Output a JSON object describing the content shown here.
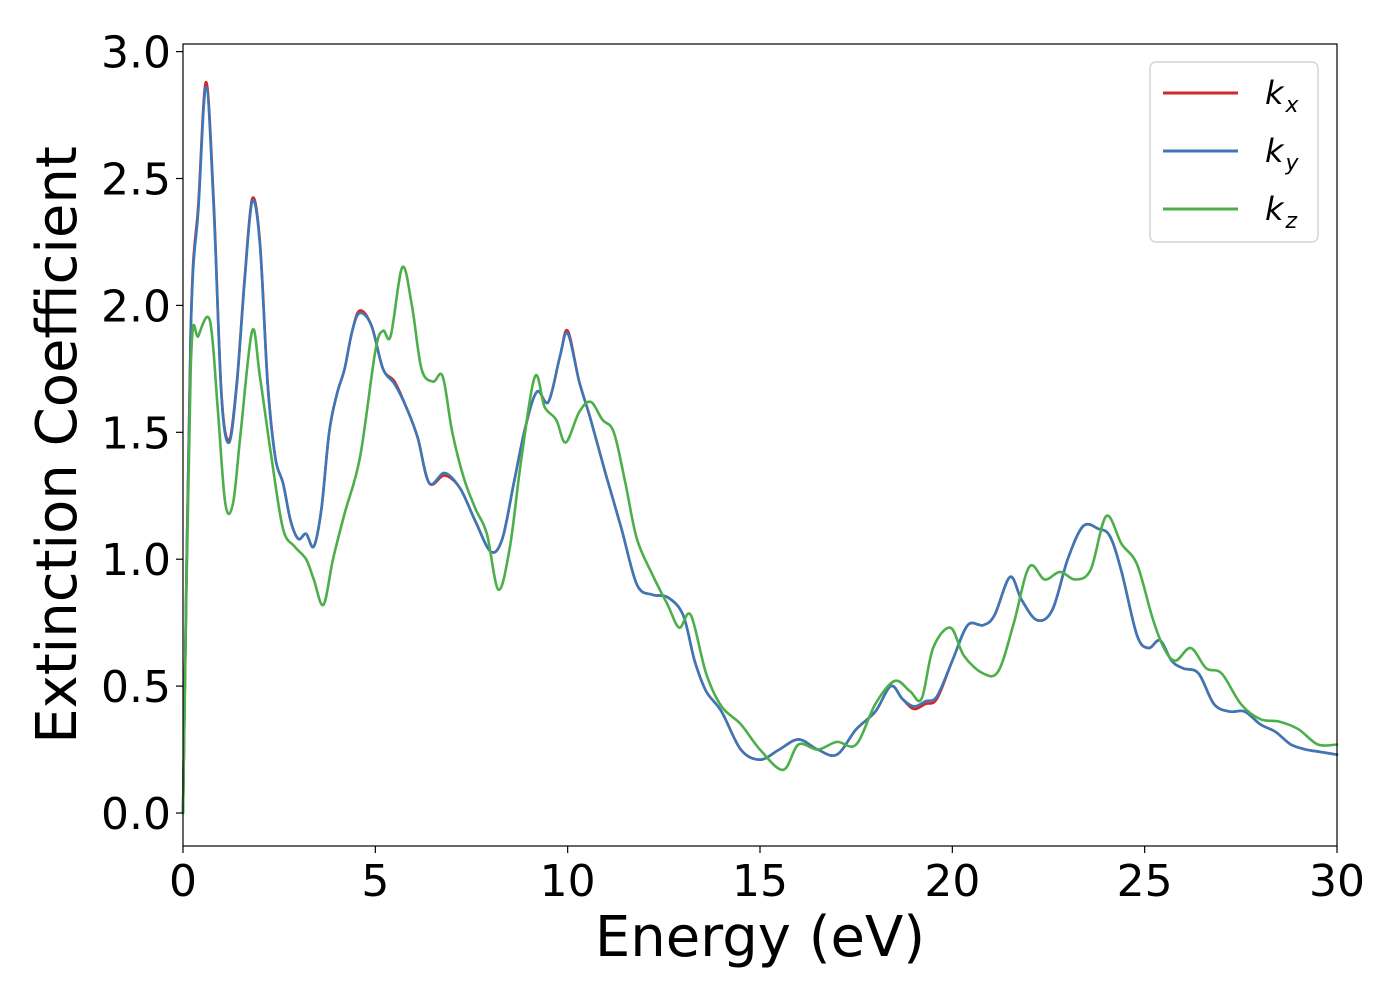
{
  "chart_data": {
    "type": "line",
    "xlabel": "Energy (eV)",
    "ylabel": "Extinction Coefficient",
    "xlim": [
      0,
      30
    ],
    "ylim": [
      -0.13,
      3.03
    ],
    "xticks": [
      0,
      5,
      10,
      15,
      20,
      25,
      30
    ],
    "yticks": [
      0.0,
      0.5,
      1.0,
      1.5,
      2.0,
      2.5,
      3.0
    ],
    "xtick_labels": [
      "0",
      "5",
      "10",
      "15",
      "20",
      "25",
      "30"
    ],
    "ytick_labels": [
      "0.0",
      "0.5",
      "1.0",
      "1.5",
      "2.0",
      "2.5",
      "3.0"
    ],
    "grid": false,
    "legend_position": "top-right",
    "series": [
      {
        "name": "k_x",
        "label_base": "k",
        "label_sub": "x",
        "color": "#d62728",
        "x": [
          0,
          0.2,
          0.4,
          0.6,
          0.8,
          1.0,
          1.2,
          1.4,
          1.6,
          1.8,
          2.0,
          2.2,
          2.4,
          2.6,
          2.8,
          3.0,
          3.2,
          3.4,
          3.6,
          3.8,
          4.0,
          4.2,
          4.4,
          4.6,
          4.9,
          5.2,
          5.5,
          5.8,
          6.1,
          6.4,
          6.8,
          7.2,
          7.6,
          8.0,
          8.3,
          8.6,
          8.9,
          9.2,
          9.5,
          9.8,
          10.0,
          10.3,
          10.6,
          11.0,
          11.4,
          11.8,
          12.2,
          12.6,
          13.0,
          13.3,
          13.6,
          14.0,
          14.5,
          15.0,
          15.5,
          16.0,
          16.5,
          17.0,
          17.5,
          18.0,
          18.4,
          18.7,
          19.0,
          19.3,
          19.6,
          20.0,
          20.4,
          20.8,
          21.1,
          21.5,
          21.8,
          22.2,
          22.6,
          23.0,
          23.4,
          23.8,
          24.1,
          24.4,
          24.8,
          25.1,
          25.4,
          25.7,
          26.0,
          26.4,
          26.8,
          27.2,
          27.6,
          28.0,
          28.4,
          28.8,
          29.2,
          29.6,
          30.0
        ],
        "y": [
          0.0,
          1.9,
          2.4,
          2.88,
          2.4,
          1.65,
          1.47,
          1.7,
          2.1,
          2.42,
          2.25,
          1.7,
          1.4,
          1.3,
          1.15,
          1.08,
          1.1,
          1.05,
          1.2,
          1.5,
          1.65,
          1.75,
          1.9,
          1.98,
          1.92,
          1.75,
          1.7,
          1.6,
          1.48,
          1.3,
          1.33,
          1.28,
          1.15,
          1.03,
          1.08,
          1.3,
          1.52,
          1.66,
          1.62,
          1.8,
          1.9,
          1.7,
          1.55,
          1.33,
          1.12,
          0.9,
          0.86,
          0.85,
          0.78,
          0.6,
          0.48,
          0.4,
          0.25,
          0.21,
          0.25,
          0.29,
          0.25,
          0.23,
          0.33,
          0.4,
          0.5,
          0.45,
          0.41,
          0.43,
          0.45,
          0.6,
          0.74,
          0.74,
          0.78,
          0.93,
          0.84,
          0.76,
          0.8,
          1.0,
          1.13,
          1.12,
          1.09,
          0.95,
          0.7,
          0.65,
          0.68,
          0.6,
          0.57,
          0.55,
          0.43,
          0.4,
          0.4,
          0.35,
          0.32,
          0.27,
          0.25,
          0.24,
          0.23
        ]
      },
      {
        "name": "k_y",
        "label_base": "k",
        "label_sub": "y",
        "color": "#3a78b8",
        "x": [
          0,
          0.2,
          0.4,
          0.6,
          0.8,
          1.0,
          1.2,
          1.4,
          1.6,
          1.8,
          2.0,
          2.2,
          2.4,
          2.6,
          2.8,
          3.0,
          3.2,
          3.4,
          3.6,
          3.8,
          4.0,
          4.2,
          4.4,
          4.6,
          4.9,
          5.2,
          5.5,
          5.8,
          6.1,
          6.4,
          6.8,
          7.2,
          7.6,
          8.0,
          8.3,
          8.6,
          8.9,
          9.2,
          9.5,
          9.8,
          10.0,
          10.3,
          10.6,
          11.0,
          11.4,
          11.8,
          12.2,
          12.6,
          13.0,
          13.3,
          13.6,
          14.0,
          14.5,
          15.0,
          15.5,
          16.0,
          16.5,
          17.0,
          17.5,
          18.0,
          18.4,
          18.7,
          19.0,
          19.3,
          19.6,
          20.0,
          20.4,
          20.8,
          21.1,
          21.5,
          21.8,
          22.2,
          22.6,
          23.0,
          23.4,
          23.8,
          24.1,
          24.4,
          24.8,
          25.1,
          25.4,
          25.7,
          26.0,
          26.4,
          26.8,
          27.2,
          27.6,
          28.0,
          28.4,
          28.8,
          29.2,
          29.6,
          30.0
        ],
        "y": [
          0.0,
          1.88,
          2.38,
          2.86,
          2.38,
          1.64,
          1.46,
          1.69,
          2.09,
          2.41,
          2.24,
          1.69,
          1.4,
          1.3,
          1.15,
          1.08,
          1.1,
          1.05,
          1.2,
          1.5,
          1.65,
          1.75,
          1.9,
          1.97,
          1.92,
          1.75,
          1.69,
          1.6,
          1.48,
          1.3,
          1.34,
          1.28,
          1.15,
          1.03,
          1.08,
          1.3,
          1.52,
          1.66,
          1.62,
          1.8,
          1.89,
          1.7,
          1.55,
          1.33,
          1.12,
          0.9,
          0.86,
          0.85,
          0.78,
          0.6,
          0.48,
          0.4,
          0.25,
          0.21,
          0.25,
          0.29,
          0.25,
          0.23,
          0.33,
          0.4,
          0.5,
          0.45,
          0.42,
          0.44,
          0.46,
          0.6,
          0.74,
          0.74,
          0.78,
          0.93,
          0.84,
          0.76,
          0.8,
          1.0,
          1.13,
          1.12,
          1.09,
          0.95,
          0.7,
          0.65,
          0.68,
          0.6,
          0.57,
          0.55,
          0.43,
          0.4,
          0.4,
          0.35,
          0.32,
          0.27,
          0.25,
          0.24,
          0.23
        ]
      },
      {
        "name": "k_z",
        "label_base": "k",
        "label_sub": "z",
        "color": "#4daf4a",
        "x": [
          0,
          0.2,
          0.4,
          0.7,
          0.9,
          1.1,
          1.3,
          1.5,
          1.8,
          2.0,
          2.3,
          2.6,
          2.9,
          3.2,
          3.4,
          3.65,
          3.9,
          4.2,
          4.6,
          5.0,
          5.2,
          5.4,
          5.7,
          5.95,
          6.2,
          6.5,
          6.75,
          7.0,
          7.3,
          7.6,
          7.9,
          8.2,
          8.5,
          8.8,
          9.15,
          9.4,
          9.7,
          9.95,
          10.3,
          10.6,
          10.9,
          11.2,
          11.5,
          11.8,
          12.2,
          12.6,
          12.9,
          13.2,
          13.6,
          14.0,
          14.5,
          15.0,
          15.6,
          16.0,
          16.5,
          17.0,
          17.5,
          18.0,
          18.5,
          18.9,
          19.2,
          19.5,
          19.95,
          20.3,
          20.8,
          21.2,
          21.6,
          22.0,
          22.4,
          22.8,
          23.2,
          23.6,
          24.0,
          24.4,
          24.8,
          25.2,
          25.5,
          25.8,
          26.2,
          26.6,
          27.0,
          27.5,
          28.0,
          28.5,
          29.0,
          29.5,
          30.0
        ],
        "y": [
          0.0,
          1.75,
          1.88,
          1.94,
          1.6,
          1.22,
          1.22,
          1.5,
          1.9,
          1.72,
          1.4,
          1.12,
          1.05,
          1.0,
          0.92,
          0.82,
          1.0,
          1.18,
          1.4,
          1.82,
          1.9,
          1.88,
          2.15,
          2.0,
          1.75,
          1.7,
          1.72,
          1.5,
          1.32,
          1.2,
          1.1,
          0.88,
          1.05,
          1.4,
          1.72,
          1.6,
          1.55,
          1.46,
          1.58,
          1.62,
          1.55,
          1.5,
          1.3,
          1.08,
          0.94,
          0.82,
          0.73,
          0.78,
          0.55,
          0.42,
          0.35,
          0.25,
          0.17,
          0.27,
          0.25,
          0.28,
          0.27,
          0.43,
          0.52,
          0.48,
          0.45,
          0.65,
          0.73,
          0.62,
          0.55,
          0.56,
          0.75,
          0.97,
          0.92,
          0.95,
          0.92,
          0.96,
          1.17,
          1.06,
          0.98,
          0.77,
          0.65,
          0.6,
          0.65,
          0.57,
          0.55,
          0.43,
          0.37,
          0.36,
          0.33,
          0.27,
          0.27
        ]
      }
    ]
  }
}
